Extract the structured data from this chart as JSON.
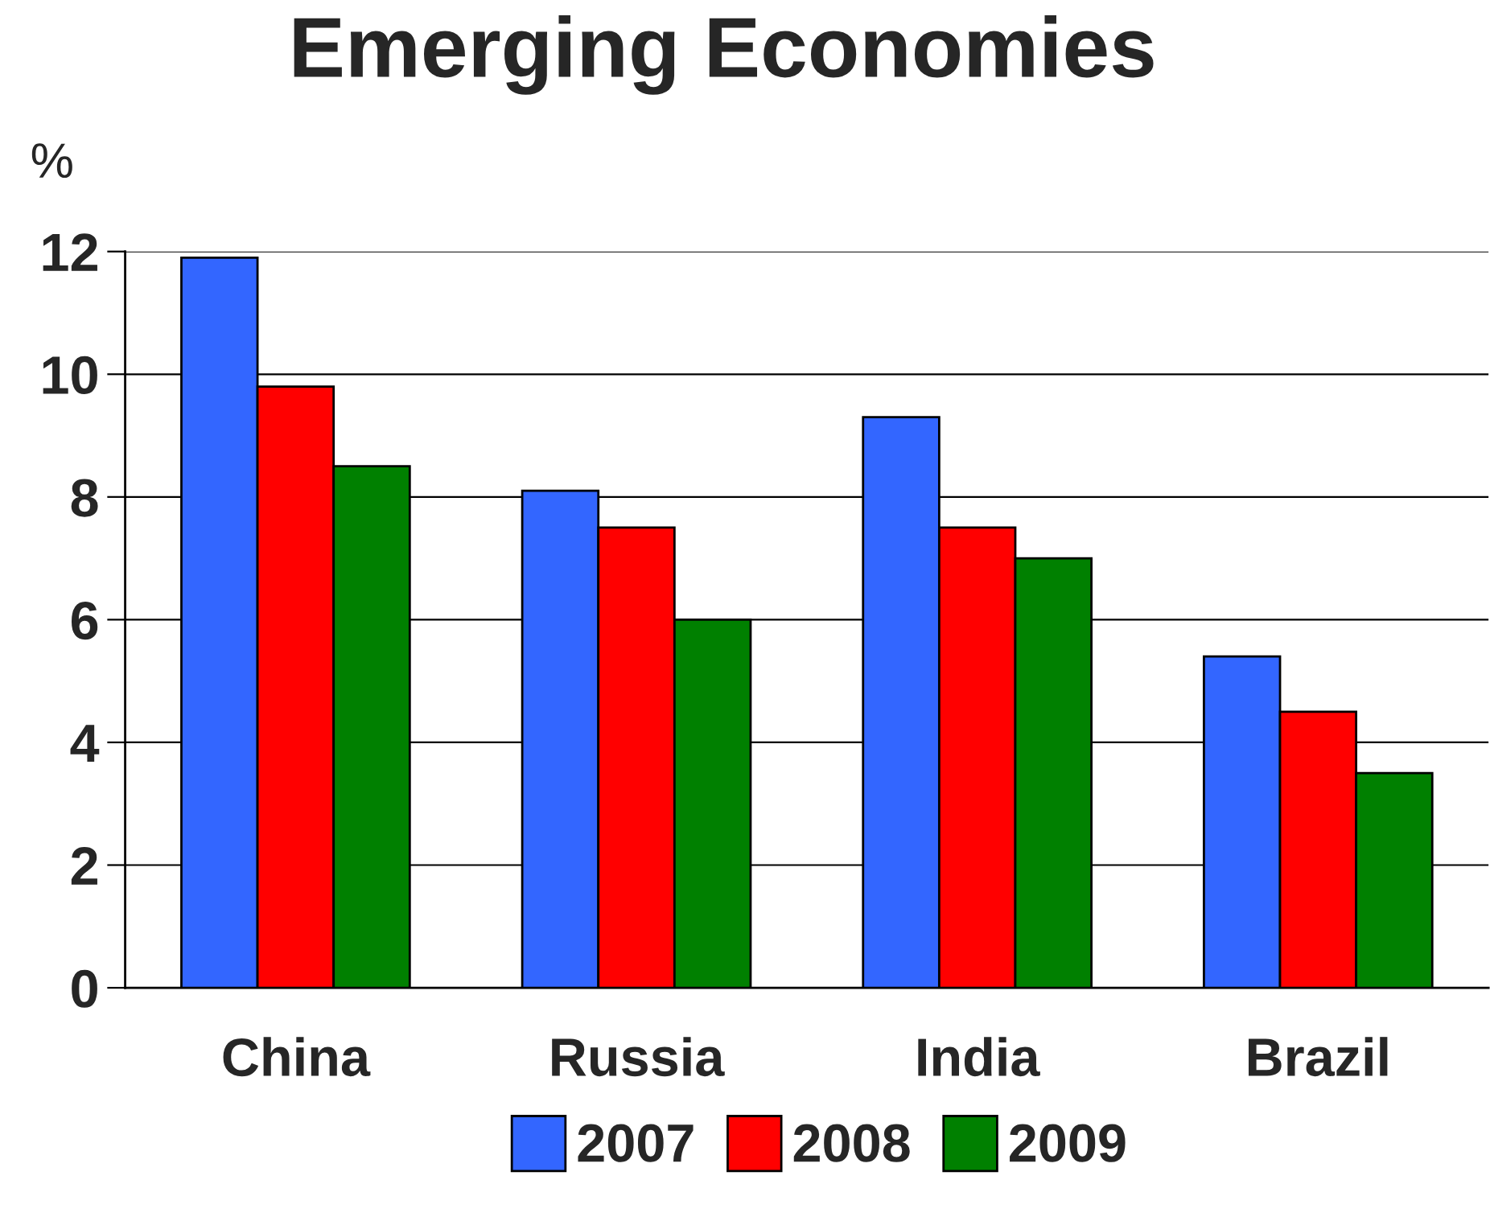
{
  "chart_data": {
    "type": "bar",
    "title": "Emerging Economies",
    "ylabel": "%",
    "categories": [
      "China",
      "Russia",
      "India",
      "Brazil"
    ],
    "series": [
      {
        "name": "2007",
        "color": "#3366ff",
        "values": [
          11.9,
          8.1,
          9.3,
          5.4
        ]
      },
      {
        "name": "2008",
        "color": "#ff0000",
        "values": [
          9.8,
          7.5,
          7.5,
          4.5
        ]
      },
      {
        "name": "2009",
        "color": "#008000",
        "values": [
          8.5,
          6.0,
          7.0,
          3.5
        ]
      }
    ],
    "ylim": [
      0,
      12
    ],
    "yticks": [
      0,
      2,
      4,
      6,
      8,
      10,
      12
    ],
    "grid": "y",
    "legend": "bottom"
  }
}
